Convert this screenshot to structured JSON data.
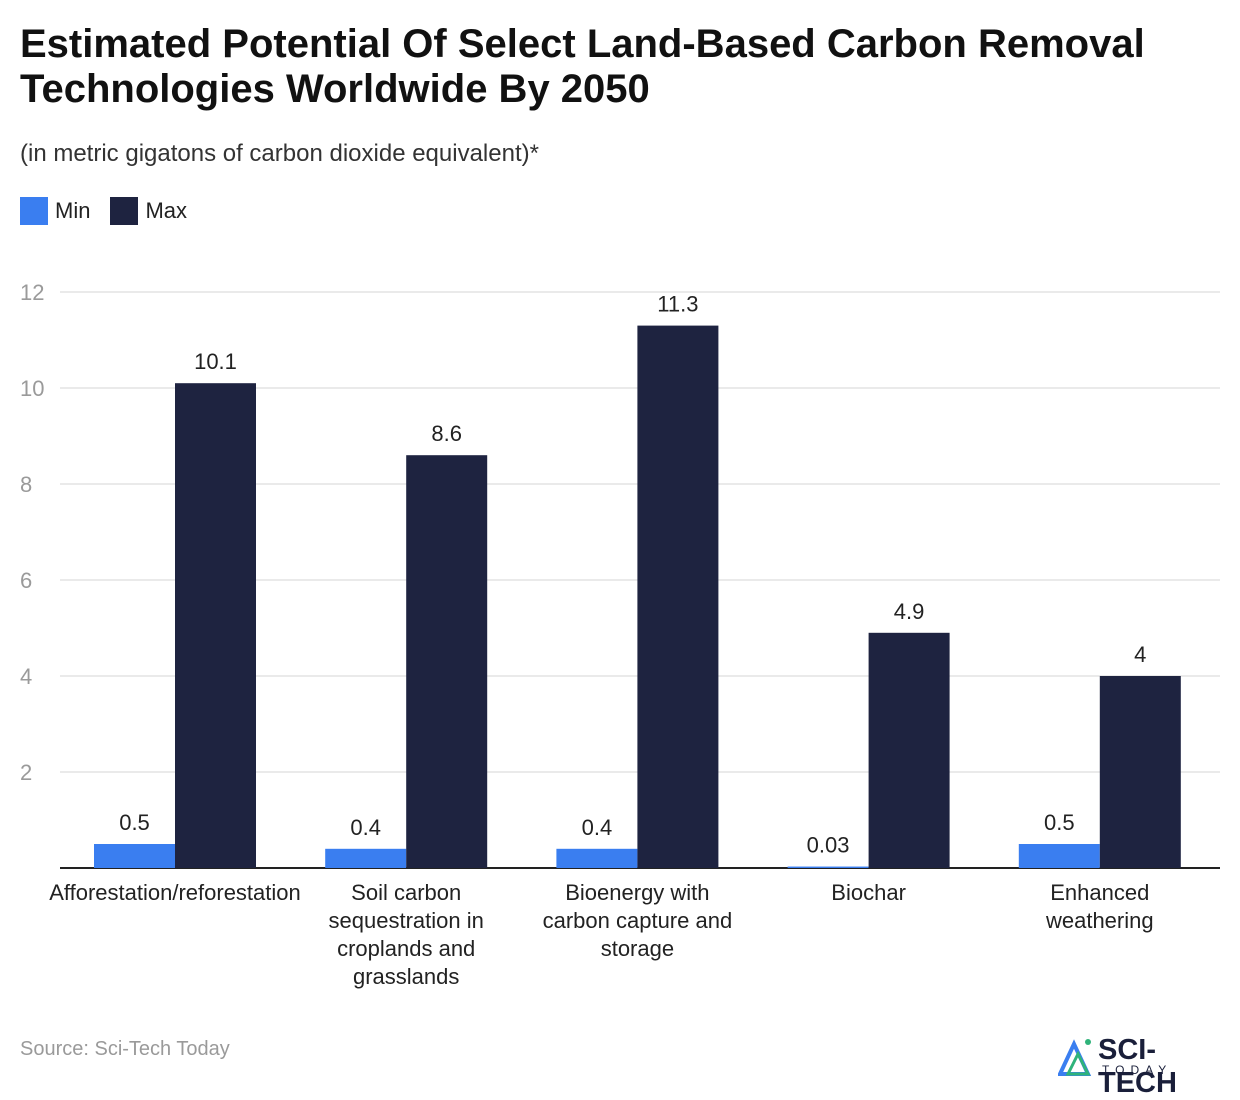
{
  "header": {
    "title": "Estimated Potential Of Select Land-Based Carbon Removal Technologies Worldwide By 2050",
    "subtitle": "(in metric gigatons of carbon dioxide equivalent)*"
  },
  "footer": {
    "source": "Source: Sci-Tech Today",
    "logo_main": "SCI-TECH",
    "logo_sub": "TODAY"
  },
  "colors": {
    "min": "#3a7ef0",
    "max": "#1e2340",
    "grid": "#e3e3e3",
    "tick": "#9a9a9a"
  },
  "chart_data": {
    "type": "bar",
    "categories": [
      [
        "Afforestation/reforestation"
      ],
      [
        "Soil carbon",
        "sequestration in",
        "croplands and",
        "grasslands"
      ],
      [
        "Bioenergy with",
        "carbon capture and",
        "storage"
      ],
      [
        "Biochar"
      ],
      [
        "Enhanced",
        "weathering"
      ]
    ],
    "series": [
      {
        "name": "Min",
        "color": "#3a7ef0",
        "values": [
          0.5,
          0.4,
          0.4,
          0.03,
          0.5
        ],
        "labels": [
          "0.5",
          "0.4",
          "0.4",
          "0.03",
          "0.5"
        ]
      },
      {
        "name": "Max",
        "color": "#1e2340",
        "values": [
          10.1,
          8.6,
          11.3,
          4.9,
          4
        ],
        "labels": [
          "10.1",
          "8.6",
          "11.3",
          "4.9",
          "4"
        ]
      }
    ],
    "yticks": [
      2,
      4,
      6,
      8,
      10,
      12
    ],
    "ylim": [
      0,
      12
    ],
    "grid": true,
    "legend": "top-left"
  }
}
